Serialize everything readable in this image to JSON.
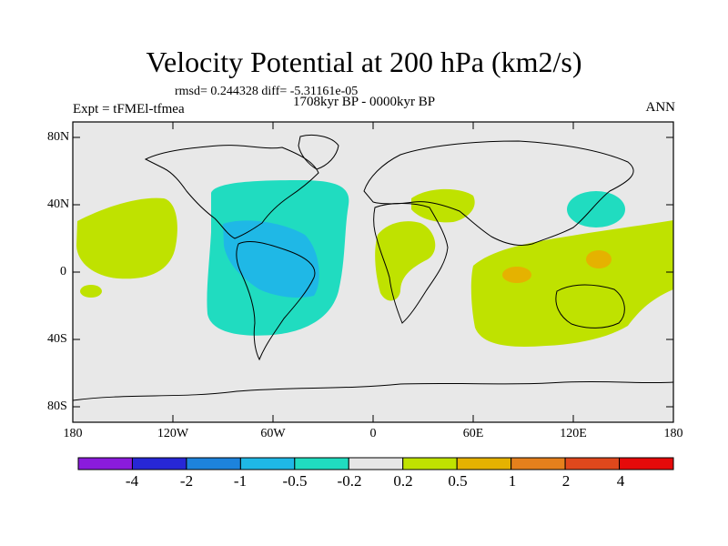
{
  "title": "Velocity Potential at 200 hPa (km2/s)",
  "stats": "rmsd= 0.244328 diff= -5.31161e-05",
  "experiment": "Expt = tFMEl-tfmea",
  "period": "1708kyr BP - 0000kyr BP",
  "season": "ANN",
  "lat_labels": [
    "80N",
    "40N",
    "0",
    "40S",
    "80S"
  ],
  "lon_labels": [
    "180",
    "120W",
    "60W",
    "0",
    "60E",
    "120E",
    "180"
  ],
  "colorbar": {
    "labels": [
      "-4",
      "-2",
      "-1",
      "-0.5",
      "-0.2",
      "0.2",
      "0.5",
      "1",
      "2",
      "4"
    ],
    "colors": [
      "#8a1bdc",
      "#2727d6",
      "#1d83dc",
      "#1fb8e6",
      "#20dcc0",
      "#e6e6e6",
      "#bfe200",
      "#e5b200",
      "#e5801c",
      "#e0481c",
      "#e50a0a"
    ]
  },
  "colors": {
    "background": "#e8e8e8",
    "positive_weak": "#bfe200",
    "positive_mid": "#e5b200",
    "negative_weak": "#20dcc0",
    "negative_mid": "#1fb8e6"
  }
}
